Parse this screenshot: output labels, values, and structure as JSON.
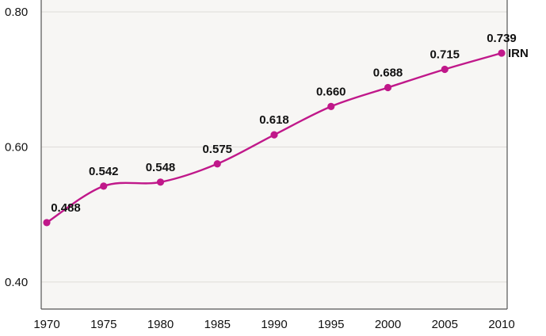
{
  "chart_data": {
    "type": "line",
    "x": [
      1970,
      1975,
      1980,
      1985,
      1990,
      1995,
      2000,
      2005,
      2010
    ],
    "series": [
      {
        "name": "IRN",
        "values": [
          0.488,
          0.542,
          0.548,
          0.575,
          0.618,
          0.66,
          0.688,
          0.715,
          0.739
        ],
        "color": "#c0188a"
      }
    ],
    "data_labels": [
      "0.488",
      "0.542",
      "0.548",
      "0.575",
      "0.618",
      "0.660",
      "0.688",
      "0.715",
      "0.739"
    ],
    "x_tick_labels": [
      "1970",
      "1975",
      "1980",
      "1985",
      "1990",
      "1995",
      "2000",
      "2005",
      "2010"
    ],
    "y_tick_values": [
      0.4,
      0.6,
      0.8
    ],
    "y_tick_labels": [
      "0.40",
      "0.60",
      "0.80"
    ],
    "ylim": [
      0.36,
      0.82
    ],
    "xlim": [
      1970,
      2010
    ],
    "grid": true,
    "plot_background": "#f7f6f4",
    "grid_color": "#dedcd8",
    "axis_color": "#555555",
    "title": "",
    "xlabel": "",
    "ylabel": ""
  }
}
